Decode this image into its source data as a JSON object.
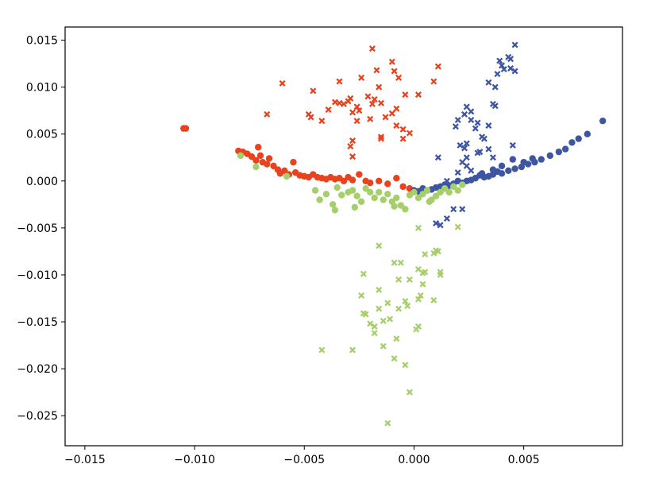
{
  "chart_data": {
    "type": "scatter",
    "title": "",
    "xlabel": "",
    "ylabel": "",
    "xlim": [
      -0.0159,
      0.0095
    ],
    "ylim": [
      -0.0282,
      0.0164
    ],
    "xticks": [
      {
        "value": -0.015,
        "label": "−0.015"
      },
      {
        "value": -0.01,
        "label": "−0.010"
      },
      {
        "value": -0.005,
        "label": "−0.005"
      },
      {
        "value": 0.0,
        "label": "0.000"
      },
      {
        "value": 0.005,
        "label": "0.005"
      }
    ],
    "yticks": [
      {
        "value": 0.015,
        "label": "0.015"
      },
      {
        "value": 0.01,
        "label": "0.010"
      },
      {
        "value": 0.005,
        "label": "0.005"
      },
      {
        "value": 0.0,
        "label": "0.000"
      },
      {
        "value": -0.005,
        "label": "−0.005"
      },
      {
        "value": -0.01,
        "label": "−0.010"
      },
      {
        "value": -0.015,
        "label": "−0.015"
      },
      {
        "value": -0.02,
        "label": "−0.020"
      },
      {
        "value": -0.025,
        "label": "−0.025"
      }
    ],
    "grid": false,
    "legend": "none",
    "series": [
      {
        "color": "#e8421e",
        "marker": "circle",
        "points": [
          [
            -0.0105,
            0.0056
          ],
          [
            -0.0104,
            0.0056
          ],
          [
            -0.008,
            0.0032
          ],
          [
            -0.0078,
            0.0031
          ],
          [
            -0.0076,
            0.0029
          ],
          [
            -0.0074,
            0.0026
          ],
          [
            -0.0072,
            0.0022
          ],
          [
            -0.0071,
            0.0036
          ],
          [
            -0.007,
            0.0027
          ],
          [
            -0.0069,
            0.002
          ],
          [
            -0.0067,
            0.0018
          ],
          [
            -0.0066,
            0.0024
          ],
          [
            -0.0064,
            0.0016
          ],
          [
            -0.0062,
            0.0012
          ],
          [
            -0.0061,
            0.0008
          ],
          [
            -0.0059,
            0.0011
          ],
          [
            -0.0057,
            0.0007
          ],
          [
            -0.0055,
            0.002
          ],
          [
            -0.0054,
            0.0009
          ],
          [
            -0.0052,
            0.0006
          ],
          [
            -0.005,
            0.0005
          ],
          [
            -0.0048,
            0.0004
          ],
          [
            -0.0046,
            0.0007
          ],
          [
            -0.0044,
            0.0004
          ],
          [
            -0.0042,
            0.0003
          ],
          [
            -0.004,
            0.0002
          ],
          [
            -0.0038,
            0.0004
          ],
          [
            -0.0036,
            0.0002
          ],
          [
            -0.0034,
            0.0003
          ],
          [
            -0.0032,
            0.0
          ],
          [
            -0.003,
            0.0004
          ],
          [
            -0.0028,
            0.0001
          ],
          [
            -0.0025,
            0.0007
          ],
          [
            -0.0022,
            0.0
          ],
          [
            -0.002,
            -0.0002
          ],
          [
            -0.0016,
            0.0
          ],
          [
            -0.0012,
            -0.0003
          ],
          [
            -0.0008,
            0.0003
          ],
          [
            -0.0005,
            -0.0006
          ],
          [
            -0.0002,
            -0.0008
          ]
        ]
      },
      {
        "color": "#3e55a1",
        "marker": "circle",
        "points": [
          [
            0.0086,
            0.0064
          ],
          [
            0.0079,
            0.005
          ],
          [
            0.0075,
            0.0045
          ],
          [
            0.0072,
            0.0041
          ],
          [
            0.0069,
            0.0034
          ],
          [
            0.0066,
            0.0031
          ],
          [
            0.0062,
            0.0027
          ],
          [
            0.0058,
            0.0023
          ],
          [
            0.0055,
            0.002
          ],
          [
            0.0052,
            0.0018
          ],
          [
            0.0049,
            0.0015
          ],
          [
            0.0046,
            0.0013
          ],
          [
            0.0043,
            0.0011
          ],
          [
            0.004,
            0.0008
          ],
          [
            0.0038,
            0.001
          ],
          [
            0.0036,
            0.0007
          ],
          [
            0.0034,
            0.0005
          ],
          [
            0.0032,
            0.0004
          ],
          [
            0.003,
            0.0006
          ],
          [
            0.0028,
            0.0003
          ],
          [
            0.0026,
            0.0001
          ],
          [
            0.0024,
            0.0
          ],
          [
            0.0022,
            -0.0002
          ],
          [
            0.002,
            0.0
          ],
          [
            0.0018,
            -0.0003
          ],
          [
            0.0016,
            -0.0005
          ],
          [
            0.0014,
            -0.0004
          ],
          [
            0.0012,
            -0.0006
          ],
          [
            0.001,
            -0.0007
          ],
          [
            0.0008,
            -0.0009
          ],
          [
            0.0006,
            -0.001
          ],
          [
            0.0004,
            -0.0008
          ],
          [
            0.0002,
            -0.0011
          ],
          [
            0.0,
            -0.001
          ],
          [
            0.0045,
            0.0023
          ],
          [
            0.004,
            0.0016
          ],
          [
            0.005,
            0.002
          ],
          [
            0.0054,
            0.0024
          ],
          [
            0.0036,
            0.0012
          ],
          [
            0.0031,
            0.0008
          ]
        ]
      },
      {
        "color": "#a6cf6b",
        "marker": "circle",
        "points": [
          [
            -0.0079,
            0.0027
          ],
          [
            -0.0072,
            0.0015
          ],
          [
            -0.0058,
            0.0005
          ],
          [
            -0.0045,
            -0.001
          ],
          [
            -0.0043,
            -0.002
          ],
          [
            -0.004,
            -0.0014
          ],
          [
            -0.0037,
            -0.0025
          ],
          [
            -0.0036,
            -0.0031
          ],
          [
            -0.0035,
            -0.0007
          ],
          [
            -0.0033,
            -0.0015
          ],
          [
            -0.003,
            -0.0012
          ],
          [
            -0.0028,
            -0.001
          ],
          [
            -0.0026,
            -0.0016
          ],
          [
            -0.0024,
            -0.0022
          ],
          [
            -0.0022,
            -0.0008
          ],
          [
            -0.002,
            -0.0012
          ],
          [
            -0.0018,
            -0.0018
          ],
          [
            -0.0016,
            -0.0012
          ],
          [
            -0.0014,
            -0.002
          ],
          [
            -0.0012,
            -0.0014
          ],
          [
            -0.001,
            -0.0022
          ],
          [
            -0.0008,
            -0.0018
          ],
          [
            -0.0006,
            -0.0026
          ],
          [
            -0.0004,
            -0.003
          ],
          [
            -0.0002,
            -0.0015
          ],
          [
            0.0,
            -0.0012
          ],
          [
            0.0002,
            -0.0018
          ],
          [
            0.0004,
            -0.0014
          ],
          [
            0.0006,
            -0.001
          ],
          [
            0.0008,
            -0.002
          ],
          [
            0.001,
            -0.0016
          ],
          [
            0.0012,
            -0.0012
          ],
          [
            0.0014,
            -0.0008
          ],
          [
            0.0016,
            -0.0012
          ],
          [
            0.0018,
            -0.0006
          ],
          [
            0.002,
            -0.001
          ],
          [
            0.0022,
            -0.0004
          ],
          [
            -0.0027,
            -0.0028
          ],
          [
            -0.0009,
            -0.0027
          ],
          [
            0.0007,
            -0.0022
          ]
        ]
      },
      {
        "color": "#e8421e",
        "marker": "x",
        "points": [
          [
            -0.0019,
            0.0141
          ],
          [
            -0.001,
            0.0127
          ],
          [
            0.0011,
            0.0122
          ],
          [
            -0.0017,
            0.0118
          ],
          [
            -0.0009,
            0.0117
          ],
          [
            -0.0007,
            0.011
          ],
          [
            -0.0024,
            0.011
          ],
          [
            -0.0034,
            0.0106
          ],
          [
            -0.006,
            0.0104
          ],
          [
            0.0009,
            0.0106
          ],
          [
            -0.0016,
            0.01
          ],
          [
            -0.0046,
            0.0096
          ],
          [
            -0.0004,
            0.0092
          ],
          [
            -0.0021,
            0.009
          ],
          [
            0.0002,
            0.0092
          ],
          [
            -0.0029,
            0.0088
          ],
          [
            -0.0018,
            0.0087
          ],
          [
            -0.0036,
            0.0084
          ],
          [
            -0.003,
            0.0085
          ],
          [
            -0.0032,
            0.0082
          ],
          [
            -0.0034,
            0.0083
          ],
          [
            -0.0019,
            0.0082
          ],
          [
            -0.0015,
            0.0083
          ],
          [
            -0.0026,
            0.0079
          ],
          [
            -0.0008,
            0.0077
          ],
          [
            -0.0039,
            0.0076
          ],
          [
            -0.0028,
            0.0073
          ],
          [
            -0.0067,
            0.0071
          ],
          [
            -0.0048,
            0.0071
          ],
          [
            -0.001,
            0.0072
          ],
          [
            -0.0047,
            0.0068
          ],
          [
            -0.0013,
            0.0068
          ],
          [
            -0.002,
            0.0066
          ],
          [
            -0.0042,
            0.0064
          ],
          [
            -0.0026,
            0.0064
          ],
          [
            -0.0008,
            0.0059
          ],
          [
            -0.0002,
            0.0051
          ],
          [
            -0.0015,
            0.0047
          ],
          [
            -0.0015,
            0.0045
          ],
          [
            -0.0005,
            0.0045
          ],
          [
            -0.0028,
            0.0043
          ],
          [
            -0.0029,
            0.0037
          ],
          [
            -0.0028,
            0.0026
          ],
          [
            -0.0005,
            0.0055
          ],
          [
            -0.0025,
            0.0075
          ]
        ]
      },
      {
        "color": "#3e55a1",
        "marker": "x",
        "points": [
          [
            0.0046,
            0.0145
          ],
          [
            0.0043,
            0.0132
          ],
          [
            0.0044,
            0.013
          ],
          [
            0.0039,
            0.0128
          ],
          [
            0.004,
            0.0123
          ],
          [
            0.0044,
            0.012
          ],
          [
            0.0046,
            0.0117
          ],
          [
            0.0038,
            0.0114
          ],
          [
            0.0041,
            0.0119
          ],
          [
            0.0034,
            0.0105
          ],
          [
            0.0037,
            0.01
          ],
          [
            0.0036,
            0.0082
          ],
          [
            0.0037,
            0.008
          ],
          [
            0.0024,
            0.0079
          ],
          [
            0.0026,
            0.0074
          ],
          [
            0.0023,
            0.0071
          ],
          [
            0.0026,
            0.0065
          ],
          [
            0.0029,
            0.0062
          ],
          [
            0.002,
            0.0065
          ],
          [
            0.0034,
            0.0059
          ],
          [
            0.0028,
            0.0056
          ],
          [
            0.0019,
            0.0058
          ],
          [
            0.0031,
            0.0047
          ],
          [
            0.0032,
            0.0045
          ],
          [
            0.0024,
            0.004
          ],
          [
            0.0021,
            0.0038
          ],
          [
            0.0023,
            0.0035
          ],
          [
            0.0034,
            0.0034
          ],
          [
            0.003,
            0.0031
          ],
          [
            0.0024,
            0.0025
          ],
          [
            0.0011,
            0.0025
          ],
          [
            0.0022,
            0.002
          ],
          [
            0.0024,
            0.0016
          ],
          [
            0.0026,
            0.0011
          ],
          [
            0.002,
            0.0009
          ],
          [
            0.0015,
            0.0
          ],
          [
            0.0018,
            -0.003
          ],
          [
            0.0022,
            -0.003
          ],
          [
            0.0015,
            -0.004
          ],
          [
            0.001,
            -0.0045
          ],
          [
            0.0012,
            -0.0047
          ],
          [
            0.0045,
            0.0038
          ],
          [
            0.0036,
            0.0025
          ],
          [
            0.0029,
            0.003
          ]
        ]
      },
      {
        "color": "#a6cf6b",
        "marker": "x",
        "points": [
          [
            0.0002,
            -0.005
          ],
          [
            0.002,
            -0.0049
          ],
          [
            -0.0016,
            -0.0069
          ],
          [
            0.001,
            -0.0074
          ],
          [
            0.0011,
            -0.0075
          ],
          [
            0.0009,
            -0.0077
          ],
          [
            0.0005,
            -0.0078
          ],
          [
            -0.0009,
            -0.0087
          ],
          [
            -0.0006,
            -0.0087
          ],
          [
            0.0002,
            -0.0094
          ],
          [
            0.0005,
            -0.0097
          ],
          [
            0.0012,
            -0.0097
          ],
          [
            -0.0023,
            -0.0099
          ],
          [
            0.0004,
            -0.0098
          ],
          [
            -0.0002,
            -0.0105
          ],
          [
            -0.0007,
            -0.0105
          ],
          [
            0.0004,
            -0.011
          ],
          [
            -0.0016,
            -0.0116
          ],
          [
            -0.0024,
            -0.0122
          ],
          [
            0.0003,
            -0.0122
          ],
          [
            0.0002,
            -0.0126
          ],
          [
            -0.0004,
            -0.0128
          ],
          [
            0.0009,
            -0.0127
          ],
          [
            -0.0003,
            -0.0133
          ],
          [
            -0.0007,
            -0.0136
          ],
          [
            -0.0016,
            -0.0136
          ],
          [
            -0.0023,
            -0.0141
          ],
          [
            -0.0022,
            -0.0142
          ],
          [
            -0.0011,
            -0.0147
          ],
          [
            -0.0014,
            -0.0149
          ],
          [
            -0.002,
            -0.0152
          ],
          [
            -0.0018,
            -0.0155
          ],
          [
            0.0002,
            -0.0155
          ],
          [
            0.0001,
            -0.0158
          ],
          [
            -0.0018,
            -0.0162
          ],
          [
            -0.0008,
            -0.0168
          ],
          [
            -0.0014,
            -0.0176
          ],
          [
            -0.0042,
            -0.018
          ],
          [
            -0.0028,
            -0.018
          ],
          [
            -0.0009,
            -0.0189
          ],
          [
            -0.0004,
            -0.0196
          ],
          [
            -0.0002,
            -0.0225
          ],
          [
            -0.0012,
            -0.0258
          ],
          [
            0.0012,
            -0.01
          ],
          [
            -0.0012,
            -0.013
          ]
        ]
      }
    ]
  }
}
